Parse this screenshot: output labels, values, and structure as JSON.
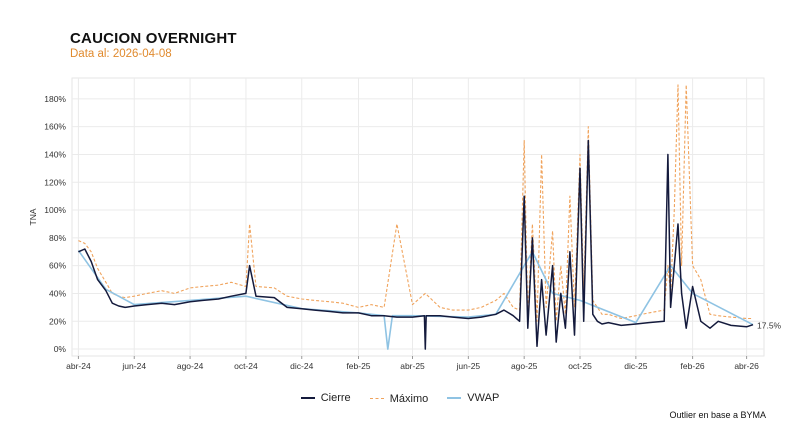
{
  "chart_data": {
    "type": "line",
    "title": "CAUCION OVERNIGHT",
    "subtitle": "Data al: 2026-04-08",
    "ylabel": "TNA",
    "xlabel": "",
    "ylim": [
      -5,
      195
    ],
    "yticks": [
      0,
      20,
      40,
      60,
      80,
      100,
      120,
      140,
      160,
      180
    ],
    "ytick_labels": [
      "0%",
      "20%",
      "40%",
      "60%",
      "80%",
      "100%",
      "120%",
      "140%",
      "160%",
      "180%"
    ],
    "xlim": [
      "2024-03-25",
      "2026-04-20"
    ],
    "xticks": [
      "2024-04-01",
      "2024-06-01",
      "2024-08-01",
      "2024-10-01",
      "2024-12-01",
      "2025-02-01",
      "2025-04-01",
      "2025-06-01",
      "2025-08-01",
      "2025-10-01",
      "2025-12-01",
      "2026-02-01",
      "2026-04-01"
    ],
    "xtick_labels": [
      "abr-24",
      "jun-24",
      "ago-24",
      "oct-24",
      "dic-24",
      "feb-25",
      "abr-25",
      "jun-25",
      "ago-25",
      "oct-25",
      "dic-25",
      "feb-26",
      "abr-26"
    ],
    "grid": true,
    "legend_position": "bottom",
    "last_value_label": "17.5%",
    "footnote": "Outlier en base a BYMA",
    "colors": {
      "Cierre": "#141a3c",
      "Máximo": "#f0a35c",
      "VWAP": "#8fc3e3"
    },
    "series": [
      {
        "name": "Cierre",
        "x": [
          "2024-04-01",
          "2024-04-08",
          "2024-04-15",
          "2024-04-22",
          "2024-05-01",
          "2024-05-08",
          "2024-05-15",
          "2024-05-22",
          "2024-06-01",
          "2024-06-15",
          "2024-07-01",
          "2024-07-15",
          "2024-08-01",
          "2024-08-15",
          "2024-09-01",
          "2024-09-15",
          "2024-10-01",
          "2024-10-05",
          "2024-10-12",
          "2024-11-01",
          "2024-11-15",
          "2024-12-01",
          "2024-12-15",
          "2025-01-01",
          "2025-01-15",
          "2025-02-01",
          "2025-02-15",
          "2025-03-01",
          "2025-03-15",
          "2025-04-01",
          "2025-04-14",
          "2025-04-15",
          "2025-04-16",
          "2025-05-01",
          "2025-05-15",
          "2025-06-01",
          "2025-06-15",
          "2025-07-01",
          "2025-07-10",
          "2025-07-20",
          "2025-07-27",
          "2025-08-01",
          "2025-08-05",
          "2025-08-10",
          "2025-08-15",
          "2025-08-20",
          "2025-08-25",
          "2025-09-01",
          "2025-09-05",
          "2025-09-10",
          "2025-09-15",
          "2025-09-20",
          "2025-09-25",
          "2025-10-01",
          "2025-10-05",
          "2025-10-10",
          "2025-10-15",
          "2025-10-20",
          "2025-10-25",
          "2025-11-01",
          "2025-11-15",
          "2025-12-01",
          "2025-12-15",
          "2026-01-01",
          "2026-01-05",
          "2026-01-08",
          "2026-01-12",
          "2026-01-16",
          "2026-01-20",
          "2026-01-25",
          "2026-02-01",
          "2026-02-10",
          "2026-02-20",
          "2026-03-01",
          "2026-03-15",
          "2026-04-01",
          "2026-04-08"
        ],
        "values": [
          70,
          72,
          63,
          50,
          42,
          33,
          31,
          30,
          31,
          32,
          33,
          32,
          34,
          35,
          36,
          38,
          40,
          60,
          38,
          37,
          30,
          29,
          28,
          27,
          26,
          26,
          24,
          24,
          23,
          23,
          24,
          0,
          24,
          24,
          23,
          22,
          23,
          25,
          28,
          24,
          20,
          110,
          15,
          80,
          2,
          50,
          10,
          60,
          5,
          40,
          15,
          70,
          10,
          130,
          20,
          150,
          25,
          20,
          18,
          19,
          17,
          18,
          19,
          20,
          140,
          30,
          60,
          90,
          40,
          15,
          45,
          20,
          15,
          20,
          17,
          16,
          17.5
        ]
      },
      {
        "name": "Máximo",
        "x": [
          "2024-04-01",
          "2024-04-08",
          "2024-04-15",
          "2024-04-22",
          "2024-05-01",
          "2024-05-08",
          "2024-05-15",
          "2024-05-22",
          "2024-06-01",
          "2024-06-15",
          "2024-07-01",
          "2024-07-15",
          "2024-08-01",
          "2024-08-15",
          "2024-09-01",
          "2024-09-15",
          "2024-10-01",
          "2024-10-05",
          "2024-10-12",
          "2024-11-01",
          "2024-11-15",
          "2024-12-01",
          "2024-12-15",
          "2025-01-01",
          "2025-01-15",
          "2025-02-01",
          "2025-02-15",
          "2025-03-01",
          "2025-03-15",
          "2025-04-01",
          "2025-04-15",
          "2025-05-01",
          "2025-05-15",
          "2025-06-01",
          "2025-06-15",
          "2025-07-01",
          "2025-07-10",
          "2025-07-20",
          "2025-07-27",
          "2025-08-01",
          "2025-08-05",
          "2025-08-10",
          "2025-08-15",
          "2025-08-20",
          "2025-08-25",
          "2025-09-01",
          "2025-09-05",
          "2025-09-10",
          "2025-09-15",
          "2025-09-20",
          "2025-09-25",
          "2025-10-01",
          "2025-10-05",
          "2025-10-10",
          "2025-10-15",
          "2025-10-20",
          "2025-10-25",
          "2025-11-01",
          "2025-11-15",
          "2025-12-01",
          "2025-12-15",
          "2026-01-01",
          "2026-01-05",
          "2026-01-08",
          "2026-01-12",
          "2026-01-16",
          "2026-01-20",
          "2026-01-25",
          "2026-02-01",
          "2026-02-10",
          "2026-02-20",
          "2026-03-01",
          "2026-03-15",
          "2026-04-01",
          "2026-04-08"
        ],
        "values": [
          78,
          76,
          70,
          58,
          48,
          40,
          38,
          37,
          38,
          40,
          42,
          40,
          44,
          45,
          46,
          48,
          45,
          90,
          45,
          44,
          38,
          36,
          35,
          34,
          33,
          30,
          32,
          30,
          90,
          32,
          40,
          30,
          28,
          28,
          30,
          35,
          40,
          30,
          28,
          150,
          25,
          90,
          20,
          140,
          30,
          85,
          20,
          60,
          25,
          110,
          30,
          140,
          40,
          160,
          35,
          30,
          25,
          25,
          22,
          24,
          26,
          28,
          60,
          40,
          100,
          190,
          60,
          190,
          60,
          50,
          25,
          24,
          23,
          22,
          22
        ]
      },
      {
        "name": "VWAP",
        "x": [
          "2024-04-01",
          "2024-05-01",
          "2024-06-01",
          "2024-08-01",
          "2024-10-01",
          "2024-12-01",
          "2025-02-01",
          "2025-03-01",
          "2025-03-05",
          "2025-03-10",
          "2025-04-01",
          "2025-06-01",
          "2025-07-01",
          "2025-08-01",
          "2025-08-10",
          "2025-09-01",
          "2025-10-01",
          "2025-12-01",
          "2026-01-08",
          "2026-02-01",
          "2026-04-08"
        ],
        "values": [
          71,
          43,
          32,
          35,
          38,
          29,
          26,
          24,
          0,
          24,
          24,
          23,
          25,
          60,
          70,
          40,
          35,
          19,
          60,
          40,
          17.5
        ]
      }
    ]
  }
}
